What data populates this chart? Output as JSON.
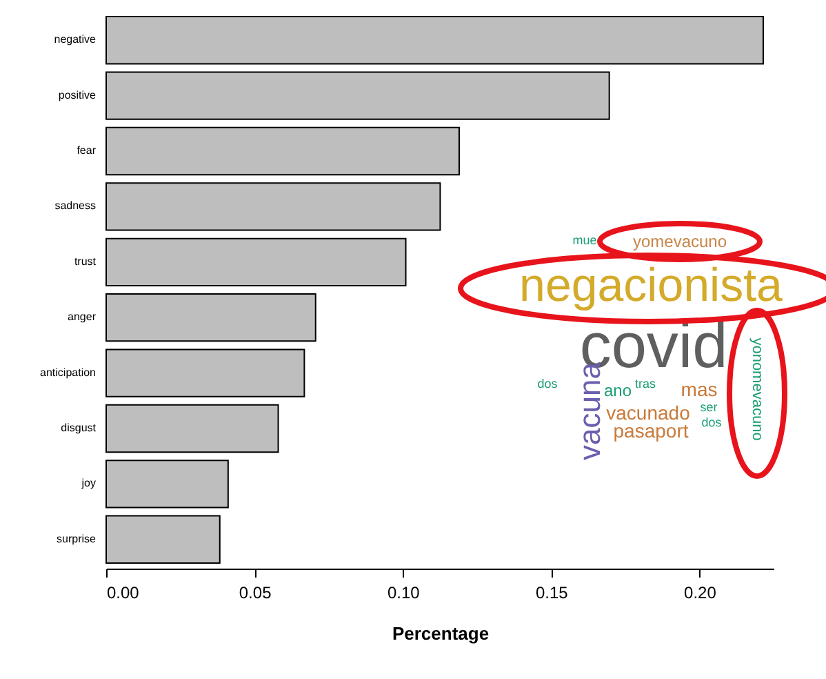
{
  "chart_data": {
    "type": "bar",
    "orientation": "horizontal",
    "xlabel": "Percentage",
    "categories": [
      "negative",
      "positive",
      "fear",
      "sadness",
      "trust",
      "anger",
      "anticipation",
      "disgust",
      "joy",
      "surprise"
    ],
    "values": [
      0.2215,
      0.1696,
      0.119,
      0.1126,
      0.101,
      0.0706,
      0.0668,
      0.058,
      0.0411,
      0.0383
    ],
    "color": "#bebebe",
    "xlim": [
      0,
      0.225
    ],
    "xticks": [
      {
        "value": 0,
        "label": "0.00"
      },
      0.05,
      {
        "value": 0.1,
        "label": "0.10"
      },
      0.15,
      {
        "value": 0.2,
        "label": "0.20"
      }
    ],
    "grid": false,
    "annotations": [
      "mue",
      "yomevacuno",
      "negacionista",
      "covid",
      "dos",
      "vacuna",
      "ano",
      "tras",
      "mas",
      "ser",
      "dos",
      "vacunado",
      "pasaport",
      "yonomevacuno"
    ]
  }
}
